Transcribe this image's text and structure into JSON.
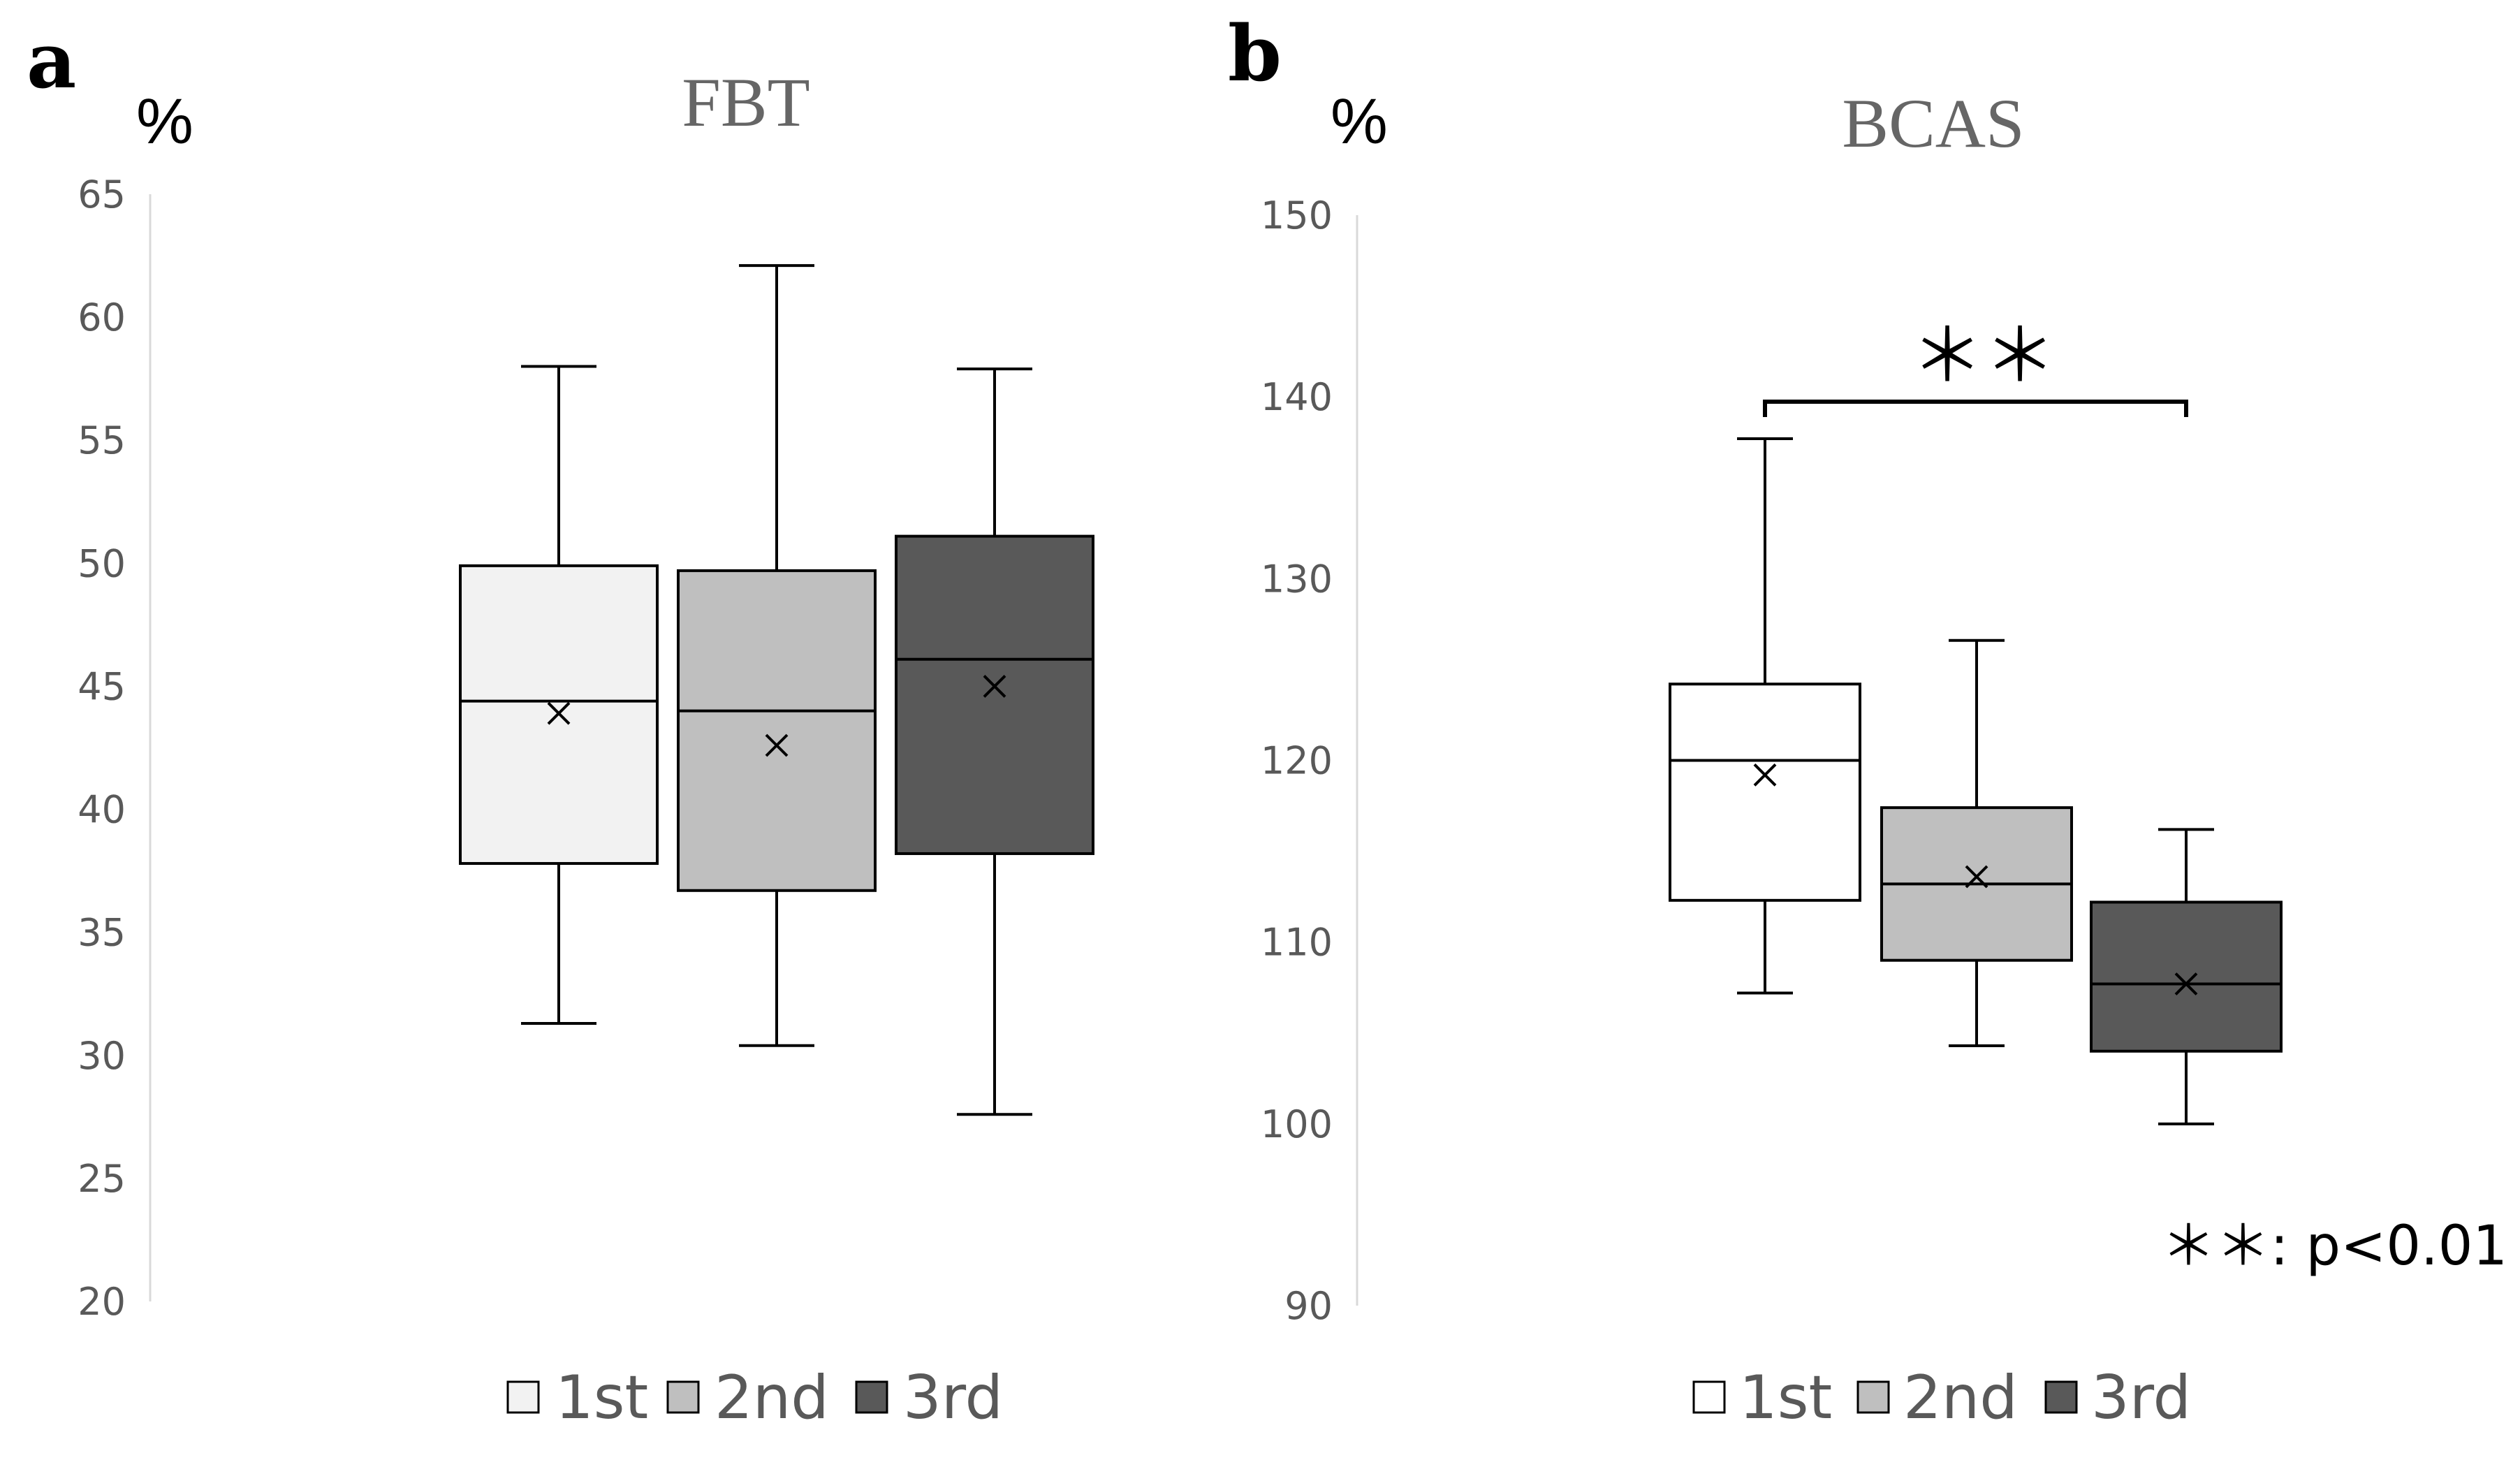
{
  "chart_data": [
    {
      "type": "boxplot",
      "panel": "a",
      "title": "FBT",
      "ylabel": "%",
      "ylim": [
        20,
        65
      ],
      "yticks": [
        65,
        60,
        55,
        50,
        45,
        40,
        35,
        30,
        25,
        20
      ],
      "grid": false,
      "legend_position": "bottom",
      "series": [
        {
          "name": "1st",
          "color": "#f2f2f2",
          "min": 31.3,
          "q1": 37.8,
          "median": 44.4,
          "q3": 49.9,
          "max": 58.0,
          "mean": 43.9
        },
        {
          "name": "2nd",
          "color": "#bfbfbf",
          "min": 30.4,
          "q1": 36.7,
          "median": 44.0,
          "q3": 49.7,
          "max": 62.1,
          "mean": 42.6
        },
        {
          "name": "3rd",
          "color": "#595959",
          "min": 27.6,
          "q1": 38.2,
          "median": 46.1,
          "q3": 51.1,
          "max": 57.9,
          "mean": 45.0
        }
      ]
    },
    {
      "type": "boxplot",
      "panel": "b",
      "title": "BCAS",
      "ylabel": "%",
      "ylim": [
        90,
        150
      ],
      "yticks": [
        150,
        140,
        130,
        120,
        110,
        100,
        90
      ],
      "grid": false,
      "legend_position": "bottom",
      "series": [
        {
          "name": "1st",
          "color": "#ffffff",
          "min": 107.2,
          "q1": 112.3,
          "median": 120.0,
          "q3": 124.2,
          "max": 137.7,
          "mean": 119.2
        },
        {
          "name": "2nd",
          "color": "#bfbfbf",
          "min": 104.3,
          "q1": 109.0,
          "median": 113.2,
          "q3": 117.4,
          "max": 126.6,
          "mean": 113.6
        },
        {
          "name": "3rd",
          "color": "#595959",
          "min": 100.0,
          "q1": 104.0,
          "median": 107.7,
          "q3": 112.2,
          "max": 116.2,
          "mean": 107.7
        }
      ],
      "significance": {
        "between": [
          "1st",
          "3rd"
        ],
        "label": "＊＊",
        "note": "＊＊: p<0.01"
      }
    }
  ]
}
